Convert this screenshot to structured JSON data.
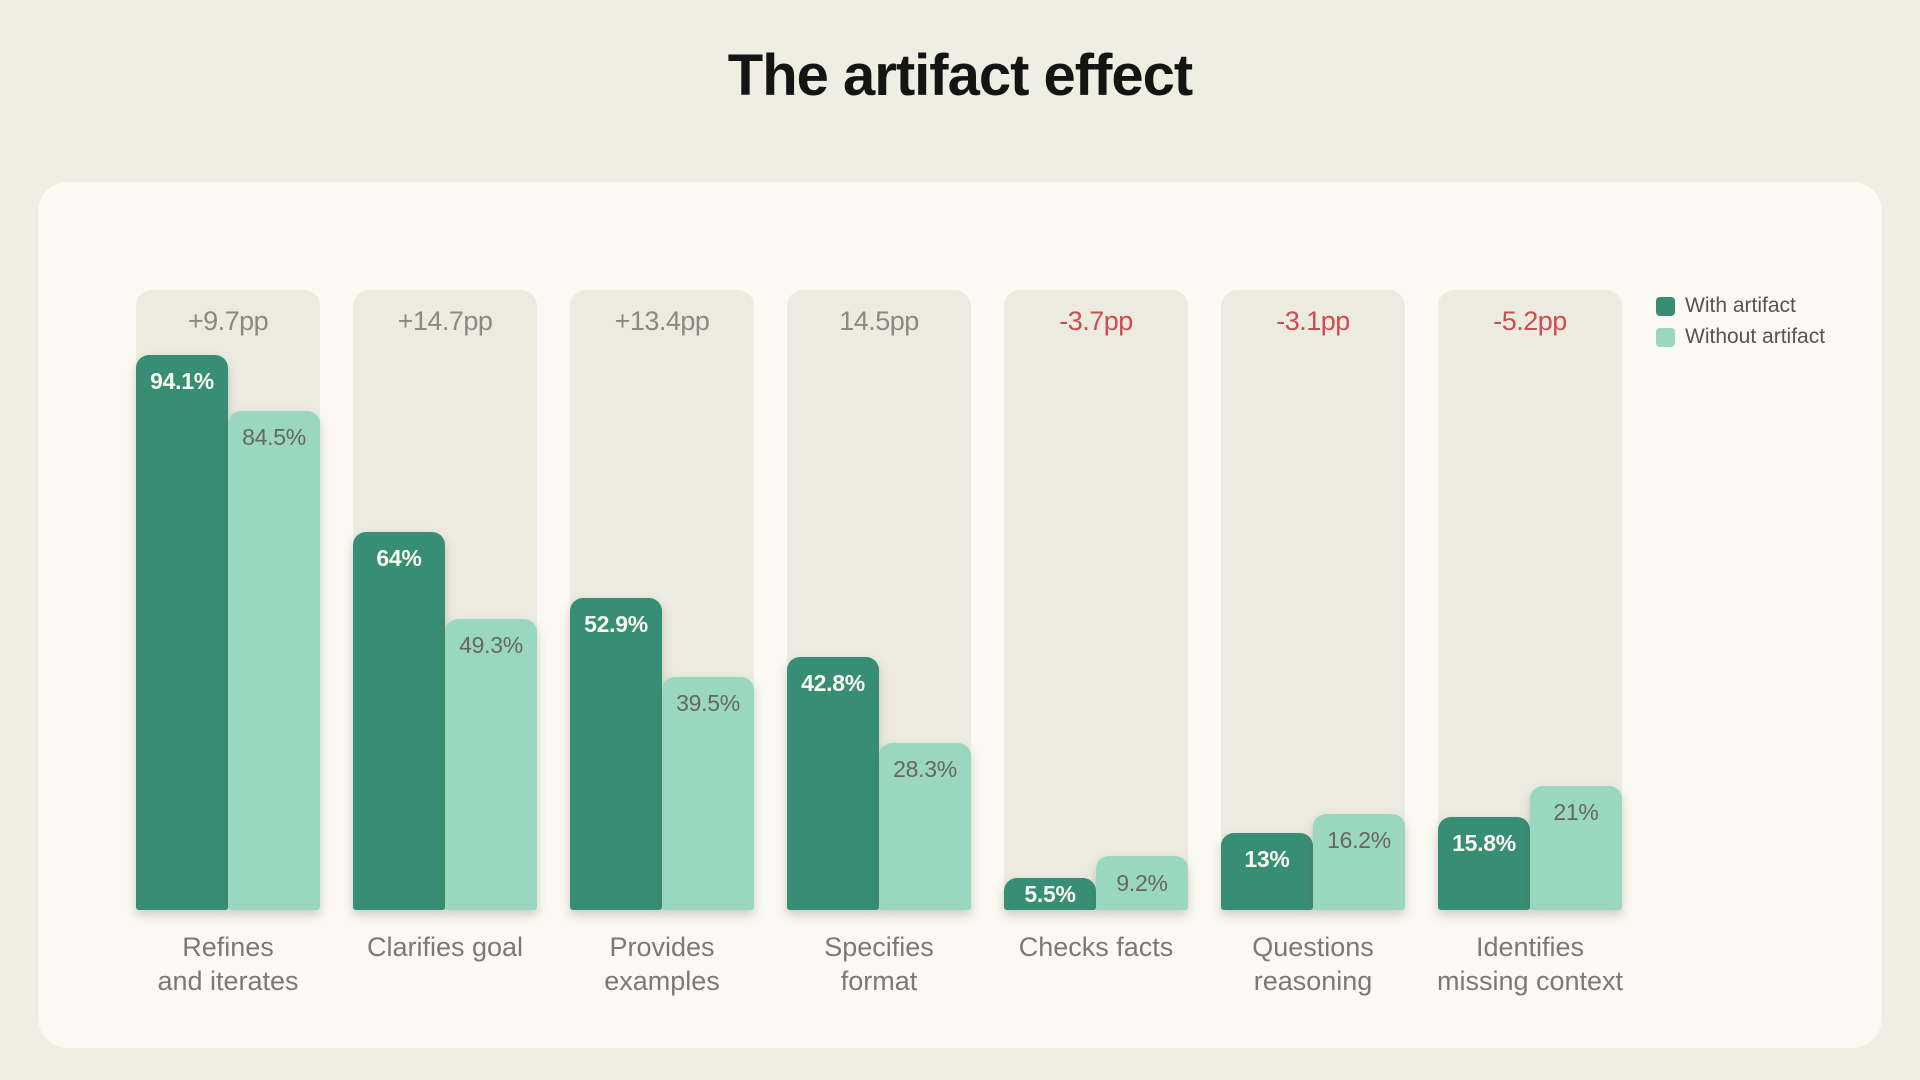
{
  "title": "The artifact effect",
  "colors": {
    "page_bg": "#efeee3",
    "card_bg": "#fafaf3",
    "panel_bg": "#ecebe0",
    "bar_with_artifact": "#388e74",
    "bar_without_artifact": "#9ad7c1",
    "delta_positive": "#8b8a80",
    "delta_negative": "#d04b50",
    "label_on_dark_bar": "#f7f7ef",
    "label_on_light_bar": "#67675f",
    "category_label": "#7b7a72",
    "title_text": "#141413",
    "legend_text": "#55554e"
  },
  "chart_data": {
    "type": "bar",
    "title": "The artifact effect",
    "categories": [
      "Refines\nand iterates",
      "Clarifies goal",
      "Provides\nexamples",
      "Specifies\nformat",
      "Checks facts",
      "Questions\nreasoning",
      "Identifies\nmissing context"
    ],
    "series": [
      {
        "name": "With artifact",
        "color": "#388e74",
        "values": [
          94.1,
          64,
          52.9,
          42.8,
          5.5,
          13,
          15.8
        ],
        "value_labels": [
          "94.1%",
          "64%",
          "52.9%",
          "42.8%",
          "5.5%",
          "13%",
          "15.8%"
        ]
      },
      {
        "name": "Without artifact",
        "color": "#9ad7c1",
        "values": [
          84.5,
          49.3,
          39.5,
          28.3,
          9.2,
          16.2,
          21
        ],
        "value_labels": [
          "84.5%",
          "49.3%",
          "39.5%",
          "28.3%",
          "9.2%",
          "16.2%",
          "21%"
        ]
      }
    ],
    "deltas": [
      {
        "label": "+9.7pp",
        "negative": false
      },
      {
        "label": "+14.7pp",
        "negative": false
      },
      {
        "label": "+13.4pp",
        "negative": false
      },
      {
        "label": "14.5pp",
        "negative": false
      },
      {
        "label": "-3.7pp",
        "negative": true
      },
      {
        "label": "-3.1pp",
        "negative": true
      },
      {
        "label": "-5.2pp",
        "negative": true
      }
    ],
    "unit": "%",
    "ylim": [
      0,
      105
    ],
    "grid": false,
    "legend_position": "top-right",
    "value_labels_inside_bars": true
  }
}
